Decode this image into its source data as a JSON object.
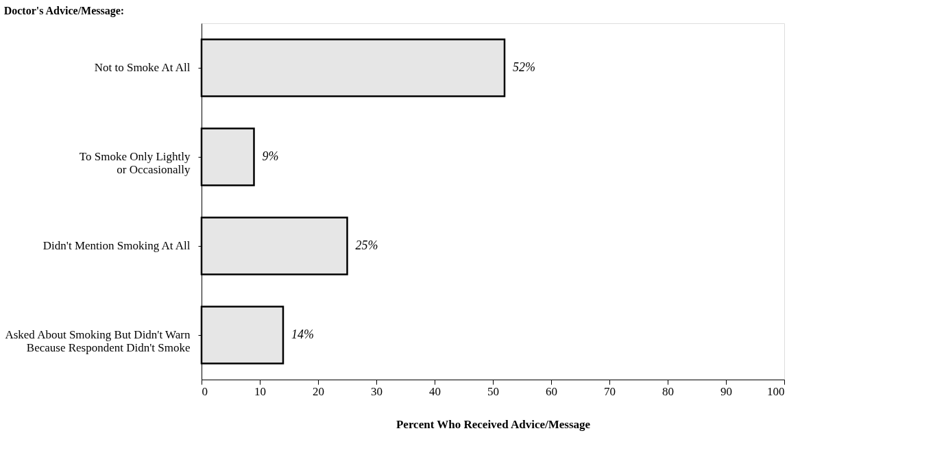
{
  "chart_data": {
    "type": "bar",
    "orientation": "horizontal",
    "title": "Doctor's Advice/Message:",
    "xlabel": "Percent Who Received Advice/Message",
    "categories": [
      "Not to Smoke At All",
      "To Smoke Only Lightly\nor Occasionally",
      "Didn't Mention Smoking  At All",
      "Asked About Smoking But Didn't Warn\nBecause Respondent Didn't Smoke"
    ],
    "values": [
      52,
      9,
      25,
      14
    ],
    "value_labels": [
      "52%",
      "9%",
      "25%",
      "14%"
    ],
    "color": "#e6e6e6",
    "xlim": [
      0,
      100
    ],
    "xticks": [
      0,
      10,
      20,
      30,
      40,
      50,
      60,
      70,
      80,
      90,
      100
    ],
    "grid": false
  }
}
